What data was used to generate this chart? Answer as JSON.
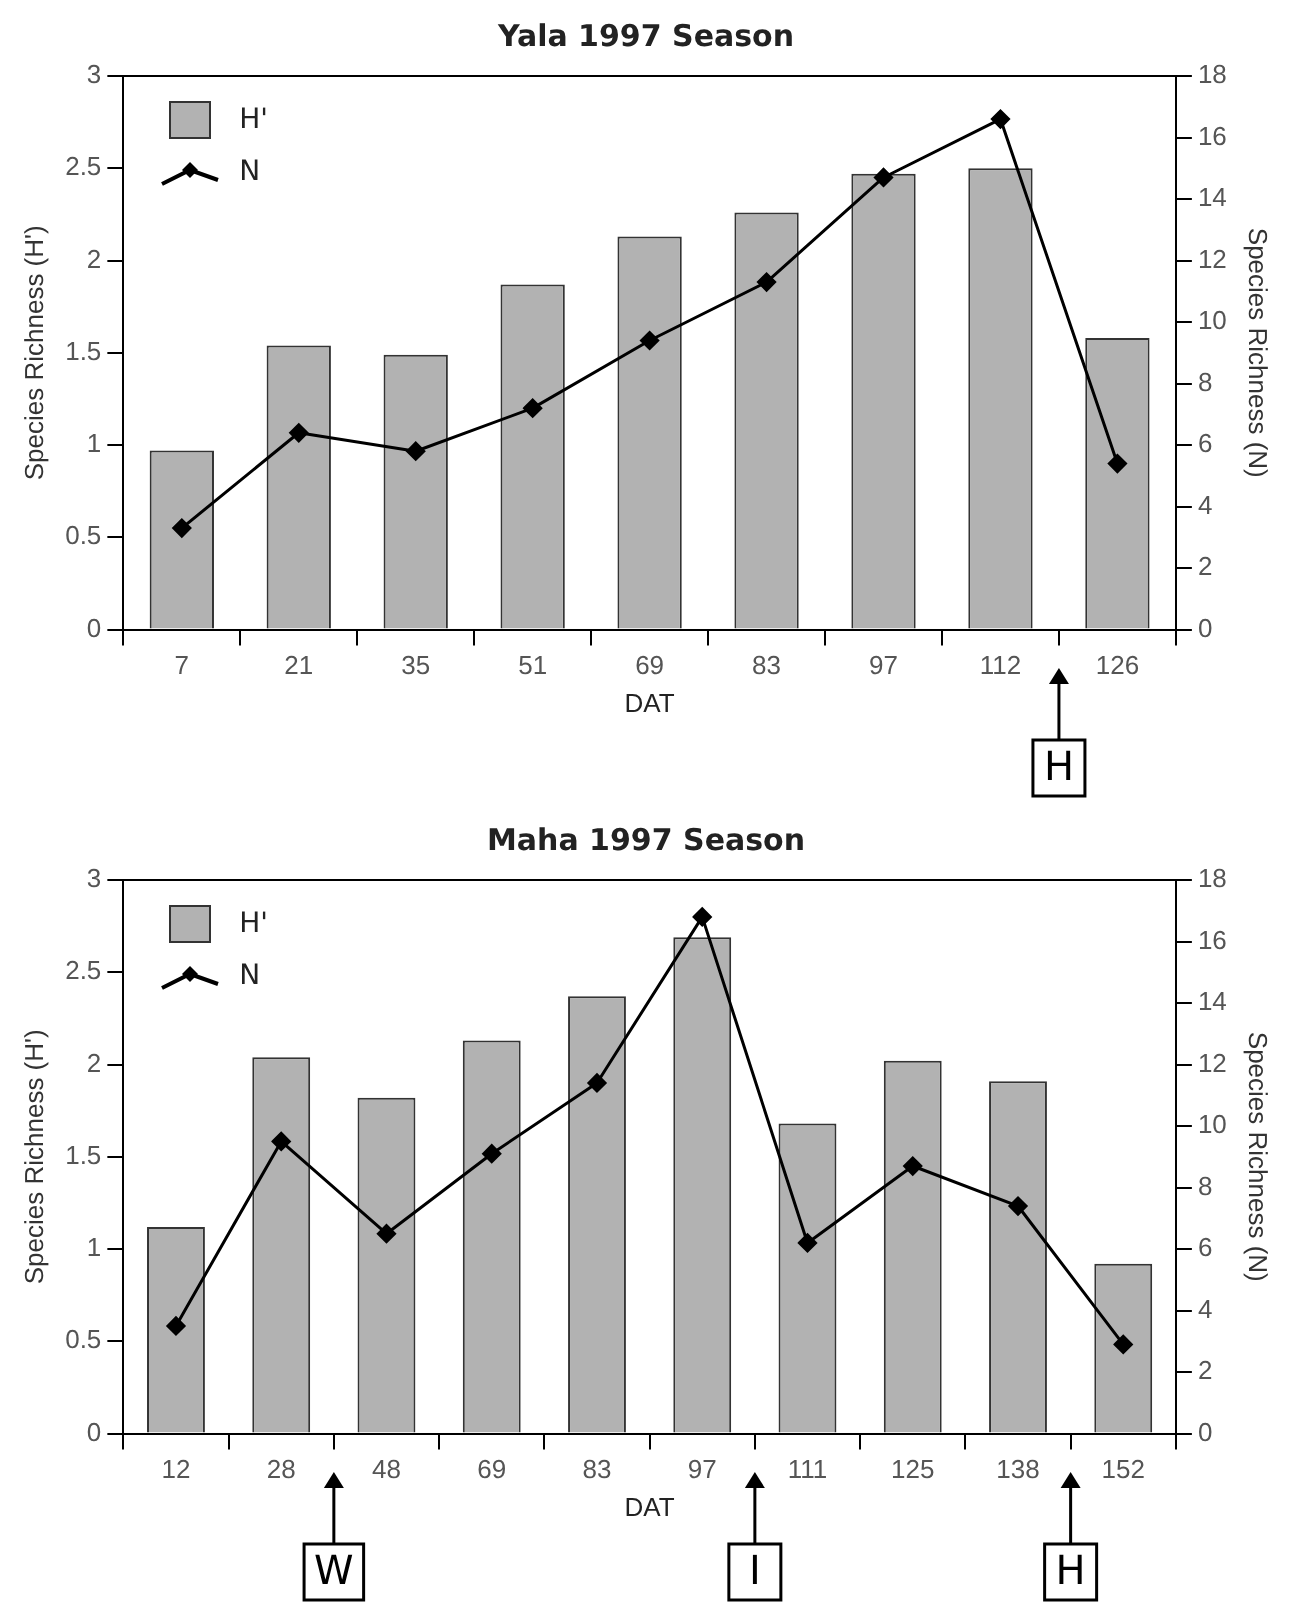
{
  "chart_data": [
    {
      "type": "bar",
      "title": "Yala 1997 Season",
      "xlabel": "DAT",
      "ylabel": "Species Richness (H')",
      "y2label": "Species Richness (N)",
      "categories": [
        "7",
        "21",
        "35",
        "51",
        "69",
        "83",
        "97",
        "112",
        "126"
      ],
      "series": [
        {
          "name": "H'",
          "type": "bar",
          "color": "#b2b2b2",
          "values": [
            0.97,
            1.54,
            1.49,
            1.87,
            2.13,
            2.26,
            2.47,
            2.5,
            1.58
          ]
        },
        {
          "name": "N",
          "type": "line",
          "axis": "y2",
          "color": "#000000",
          "values": [
            3.3,
            6.4,
            5.8,
            7.2,
            9.4,
            11.3,
            14.7,
            16.6,
            5.4
          ]
        }
      ],
      "ylim": [
        0,
        3
      ],
      "yticks": [
        0,
        0.5,
        1,
        1.5,
        2,
        2.5,
        3
      ],
      "y2lim": [
        0,
        18
      ],
      "y2ticks": [
        0,
        2,
        4,
        6,
        8,
        10,
        12,
        14,
        16,
        18
      ],
      "grid": false,
      "legend": "top left",
      "marker": "diamond",
      "line_style": "solid",
      "annotations": [
        "H"
      ]
    },
    {
      "type": "bar",
      "title": "Maha 1997 Season",
      "xlabel": "DAT",
      "ylabel": "Species Richness (H')",
      "y2label": "Species Richness (N)",
      "categories": [
        "12",
        "28",
        "48",
        "69",
        "83",
        "97",
        "111",
        "125",
        "138",
        "152"
      ],
      "series": [
        {
          "name": "H'",
          "type": "bar",
          "color": "#b2b2b2",
          "values": [
            1.12,
            2.04,
            1.82,
            2.13,
            2.37,
            2.69,
            1.68,
            2.02,
            1.91,
            0.92
          ]
        },
        {
          "name": "N",
          "type": "line",
          "axis": "y2",
          "color": "#000000",
          "values": [
            3.5,
            9.5,
            6.5,
            9.1,
            11.4,
            16.8,
            6.2,
            8.7,
            7.4,
            2.9
          ]
        }
      ],
      "ylim": [
        0,
        3
      ],
      "yticks": [
        0,
        0.5,
        1,
        1.5,
        2,
        2.5,
        3
      ],
      "y2lim": [
        0,
        18
      ],
      "y2ticks": [
        0,
        2,
        4,
        6,
        8,
        10,
        12,
        14,
        16,
        18
      ],
      "grid": false,
      "legend": "top left",
      "marker": "diamond",
      "line_style": "solid",
      "annotations": [
        "W",
        "I",
        "H"
      ]
    }
  ]
}
